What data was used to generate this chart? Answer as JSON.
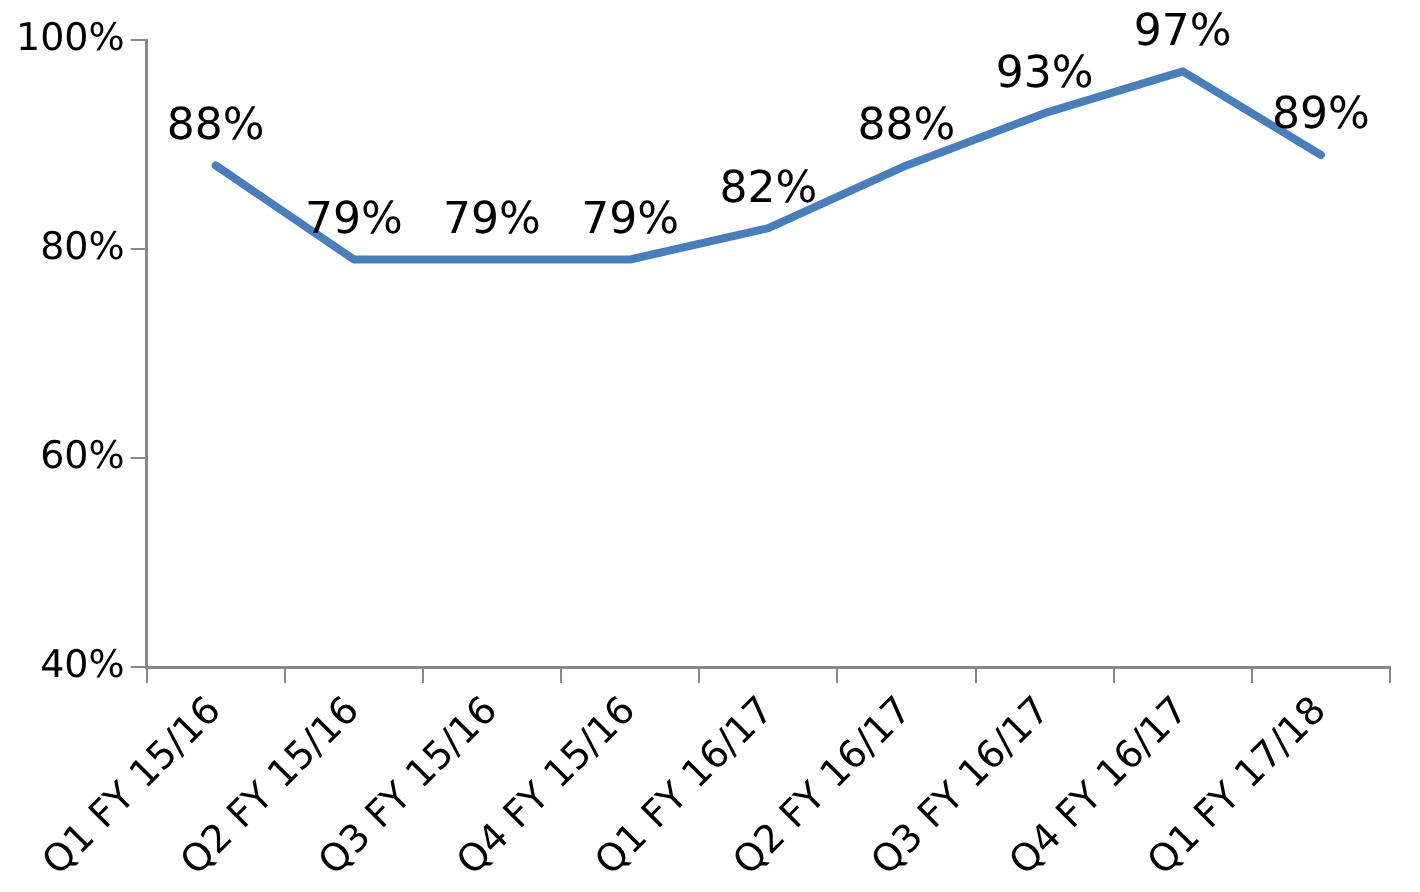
{
  "chart_data": {
    "type": "line",
    "categories": [
      "Q1 FY 15/16",
      "Q2 FY 15/16",
      "Q3 FY 15/16",
      "Q4 FY 15/16",
      "Q1 FY 16/17",
      "Q2 FY 16/17",
      "Q3 FY 16/17",
      "Q4 FY 16/17",
      "Q1 FY 17/18"
    ],
    "series": [
      {
        "color": "#4a7ebb",
        "values": [
          88,
          79,
          79,
          79,
          82,
          88,
          93,
          97,
          89
        ],
        "value_labels": [
          "88%",
          "79%",
          "79%",
          "79%",
          "82%",
          "88%",
          "93%",
          "97%",
          "89%"
        ]
      }
    ],
    "ylim": [
      40,
      100
    ],
    "yticks": [
      {
        "value": 40,
        "label": "40%"
      },
      {
        "value": 60,
        "label": "60%"
      },
      {
        "value": 80,
        "label": "80%"
      },
      {
        "value": 100,
        "label": "100%"
      }
    ],
    "grid": false,
    "legend": false,
    "marker": "none",
    "line_style": "solid"
  }
}
